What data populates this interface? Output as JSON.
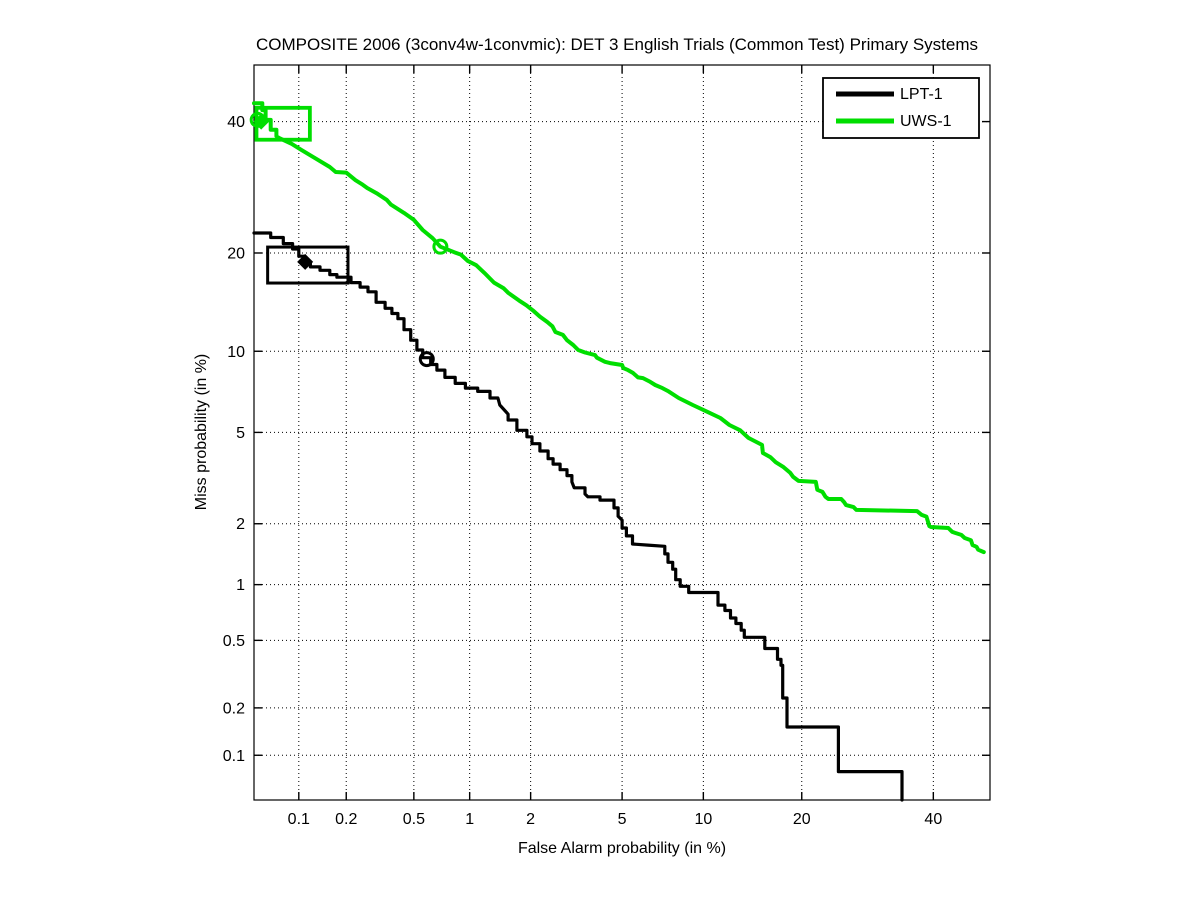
{
  "title": "COMPOSITE 2006 (3conv4w-1convmic): DET 3 English Trials (Common Test) Primary Systems",
  "colors": {
    "lpt1": "#000000",
    "uws1": "#00DE00",
    "grid": "#000000",
    "background": "#ffffff"
  },
  "legend": {
    "position": "top-right",
    "entries": [
      {
        "label": "LPT-1",
        "color": "#000000"
      },
      {
        "label": "UWS-1",
        "color": "#00DE00"
      }
    ]
  },
  "chart_data": {
    "type": "line",
    "subtype": "DET-curve (probit / normal-deviate scale on both axes)",
    "title": "COMPOSITE 2006 (3conv4w-1convmic): DET 3 English Trials (Common Test) Primary Systems",
    "xlabel": "False Alarm probability (in %)",
    "ylabel": "Miss probability (in %)",
    "xlim": [
      0.05,
      50
    ],
    "ylim": [
      0.05,
      50
    ],
    "grid": "dotted",
    "legend_position": "top-right",
    "x_ticks": [
      "0.1",
      "0.2",
      "0.5",
      "1",
      "2",
      "5",
      "10",
      "20",
      "40"
    ],
    "y_ticks": [
      "0.1",
      "0.2",
      "0.5",
      "1",
      "2",
      "5",
      "10",
      "20",
      "40"
    ],
    "series": [
      {
        "name": "LPT-1",
        "color": "#000000",
        "width": 3.2,
        "points": [
          [
            0.05,
            22.6
          ],
          [
            0.065,
            22.6
          ],
          [
            0.065,
            22.0
          ],
          [
            0.079,
            22.0
          ],
          [
            0.079,
            21.2
          ],
          [
            0.091,
            21.2
          ],
          [
            0.091,
            20.5
          ],
          [
            0.1,
            20.5
          ],
          [
            0.1,
            19.6
          ],
          [
            0.109,
            19.6
          ],
          [
            0.109,
            18.8
          ],
          [
            0.119,
            18.8
          ],
          [
            0.119,
            18.3
          ],
          [
            0.137,
            18.3
          ],
          [
            0.137,
            17.9
          ],
          [
            0.158,
            17.9
          ],
          [
            0.158,
            17.4
          ],
          [
            0.175,
            17.4
          ],
          [
            0.175,
            17.1
          ],
          [
            0.214,
            17.1
          ],
          [
            0.214,
            16.5
          ],
          [
            0.243,
            16.5
          ],
          [
            0.243,
            16.0
          ],
          [
            0.271,
            16.0
          ],
          [
            0.271,
            15.5
          ],
          [
            0.303,
            15.5
          ],
          [
            0.303,
            14.4
          ],
          [
            0.342,
            14.4
          ],
          [
            0.342,
            13.8
          ],
          [
            0.375,
            13.8
          ],
          [
            0.375,
            13.3
          ],
          [
            0.406,
            13.3
          ],
          [
            0.406,
            12.8
          ],
          [
            0.44,
            12.8
          ],
          [
            0.44,
            11.8
          ],
          [
            0.48,
            11.8
          ],
          [
            0.48,
            10.9
          ],
          [
            0.52,
            10.9
          ],
          [
            0.52,
            10.1
          ],
          [
            0.56,
            10.1
          ],
          [
            0.56,
            9.5
          ],
          [
            0.62,
            9.5
          ],
          [
            0.62,
            9.0
          ],
          [
            0.67,
            9.0
          ],
          [
            0.67,
            8.6
          ],
          [
            0.74,
            8.6
          ],
          [
            0.74,
            8.1
          ],
          [
            0.84,
            8.1
          ],
          [
            0.84,
            7.7
          ],
          [
            0.95,
            7.7
          ],
          [
            0.95,
            7.4
          ],
          [
            1.1,
            7.4
          ],
          [
            1.1,
            7.2
          ],
          [
            1.27,
            7.2
          ],
          [
            1.27,
            6.8
          ],
          [
            1.39,
            6.8
          ],
          [
            1.42,
            6.4
          ],
          [
            1.56,
            5.9
          ],
          [
            1.56,
            5.6
          ],
          [
            1.72,
            5.6
          ],
          [
            1.72,
            5.1
          ],
          [
            1.92,
            5.1
          ],
          [
            1.92,
            4.8
          ],
          [
            2.03,
            4.8
          ],
          [
            2.03,
            4.5
          ],
          [
            2.21,
            4.5
          ],
          [
            2.21,
            4.2
          ],
          [
            2.41,
            4.2
          ],
          [
            2.41,
            3.9
          ],
          [
            2.54,
            3.9
          ],
          [
            2.54,
            3.7
          ],
          [
            2.73,
            3.7
          ],
          [
            2.73,
            3.5
          ],
          [
            2.93,
            3.5
          ],
          [
            2.93,
            3.3
          ],
          [
            3.08,
            3.3
          ],
          [
            3.08,
            3.1
          ],
          [
            3.15,
            2.92
          ],
          [
            3.51,
            2.92
          ],
          [
            3.51,
            2.74
          ],
          [
            3.61,
            2.66
          ],
          [
            4.06,
            2.66
          ],
          [
            4.06,
            2.57
          ],
          [
            4.64,
            2.57
          ],
          [
            4.64,
            2.37
          ],
          [
            4.82,
            2.37
          ],
          [
            4.82,
            2.17
          ],
          [
            5.0,
            2.08
          ],
          [
            5.0,
            1.91
          ],
          [
            5.2,
            1.91
          ],
          [
            5.2,
            1.75
          ],
          [
            5.5,
            1.75
          ],
          [
            5.5,
            1.6
          ],
          [
            6.3,
            1.58
          ],
          [
            7.3,
            1.56
          ],
          [
            7.3,
            1.43
          ],
          [
            7.5,
            1.43
          ],
          [
            7.5,
            1.3
          ],
          [
            7.8,
            1.3
          ],
          [
            7.8,
            1.2
          ],
          [
            8.0,
            1.2
          ],
          [
            8.0,
            1.06
          ],
          [
            8.3,
            1.06
          ],
          [
            8.3,
            0.98
          ],
          [
            8.9,
            0.98
          ],
          [
            8.9,
            0.91
          ],
          [
            11.2,
            0.91
          ],
          [
            11.2,
            0.78
          ],
          [
            11.8,
            0.78
          ],
          [
            11.8,
            0.73
          ],
          [
            12.3,
            0.73
          ],
          [
            12.3,
            0.665
          ],
          [
            12.8,
            0.665
          ],
          [
            12.8,
            0.62
          ],
          [
            13.3,
            0.62
          ],
          [
            13.3,
            0.57
          ],
          [
            13.6,
            0.57
          ],
          [
            13.6,
            0.52
          ],
          [
            15.7,
            0.52
          ],
          [
            15.7,
            0.45
          ],
          [
            17.1,
            0.45
          ],
          [
            17.1,
            0.39
          ],
          [
            17.5,
            0.39
          ],
          [
            17.5,
            0.36
          ],
          [
            17.7,
            0.36
          ],
          [
            17.7,
            0.23
          ],
          [
            18.2,
            0.23
          ],
          [
            18.2,
            0.152
          ],
          [
            18.6,
            0.152
          ],
          [
            24.9,
            0.152
          ],
          [
            24.9,
            0.078
          ],
          [
            34.7,
            0.078
          ],
          [
            34.7,
            0.05
          ]
        ],
        "markers": [
          {
            "shape": "diamond",
            "fa": 0.11,
            "miss": 18.9
          },
          {
            "shape": "circle",
            "fa": 0.59,
            "miss": 9.4
          }
        ],
        "box": {
          "fa": [
            0.062,
            0.205
          ],
          "miss": [
            16.45,
            20.75
          ]
        }
      },
      {
        "name": "UWS-1",
        "color": "#00DE00",
        "width": 4,
        "points": [
          [
            0.05,
            43.2
          ],
          [
            0.057,
            43.2
          ],
          [
            0.057,
            42.0
          ],
          [
            0.06,
            42.0
          ],
          [
            0.06,
            40.3
          ],
          [
            0.065,
            40.3
          ],
          [
            0.065,
            38.6
          ],
          [
            0.071,
            38.6
          ],
          [
            0.071,
            37.5
          ],
          [
            0.074,
            37.2
          ],
          [
            0.09,
            36.2
          ],
          [
            0.104,
            35.2
          ],
          [
            0.117,
            34.4
          ],
          [
            0.126,
            33.9
          ],
          [
            0.158,
            32.4
          ],
          [
            0.172,
            31.6
          ],
          [
            0.2,
            31.5
          ],
          [
            0.228,
            30.3
          ],
          [
            0.252,
            29.6
          ],
          [
            0.268,
            29.1
          ],
          [
            0.305,
            28.3
          ],
          [
            0.35,
            27.3
          ],
          [
            0.37,
            26.6
          ],
          [
            0.44,
            25.4
          ],
          [
            0.5,
            24.4
          ],
          [
            0.56,
            23.0
          ],
          [
            0.635,
            21.9
          ],
          [
            0.7,
            20.8
          ],
          [
            0.83,
            20.1
          ],
          [
            0.9,
            19.8
          ],
          [
            0.98,
            19.0
          ],
          [
            1.08,
            18.5
          ],
          [
            1.19,
            17.6
          ],
          [
            1.33,
            16.5
          ],
          [
            1.48,
            15.9
          ],
          [
            1.56,
            15.4
          ],
          [
            1.76,
            14.6
          ],
          [
            1.91,
            14.1
          ],
          [
            2.05,
            13.6
          ],
          [
            2.21,
            13.0
          ],
          [
            2.39,
            12.5
          ],
          [
            2.52,
            12.1
          ],
          [
            2.6,
            11.6
          ],
          [
            2.81,
            11.35
          ],
          [
            2.93,
            10.9
          ],
          [
            3.12,
            10.5
          ],
          [
            3.28,
            10.1
          ],
          [
            3.51,
            9.9
          ],
          [
            3.87,
            9.7
          ],
          [
            3.94,
            9.5
          ],
          [
            4.26,
            9.2
          ],
          [
            4.47,
            9.1
          ],
          [
            5.0,
            8.96
          ],
          [
            5.05,
            8.75
          ],
          [
            5.28,
            8.6
          ],
          [
            5.52,
            8.4
          ],
          [
            5.78,
            8.1
          ],
          [
            6.04,
            8.05
          ],
          [
            6.44,
            7.8
          ],
          [
            6.72,
            7.6
          ],
          [
            7.15,
            7.4
          ],
          [
            7.54,
            7.2
          ],
          [
            8.2,
            6.8
          ],
          [
            9.2,
            6.4
          ],
          [
            10.4,
            6.0
          ],
          [
            11.4,
            5.7
          ],
          [
            12.2,
            5.35
          ],
          [
            13.2,
            5.1
          ],
          [
            14.0,
            4.75
          ],
          [
            15.4,
            4.45
          ],
          [
            15.5,
            4.12
          ],
          [
            16.3,
            3.96
          ],
          [
            16.9,
            3.77
          ],
          [
            17.8,
            3.59
          ],
          [
            18.6,
            3.39
          ],
          [
            18.95,
            3.26
          ],
          [
            19.6,
            3.13
          ],
          [
            21.8,
            3.1
          ],
          [
            22.0,
            2.86
          ],
          [
            22.7,
            2.8
          ],
          [
            23.1,
            2.66
          ],
          [
            23.5,
            2.6
          ],
          [
            25.3,
            2.6
          ],
          [
            25.7,
            2.52
          ],
          [
            26.0,
            2.44
          ],
          [
            27.1,
            2.39
          ],
          [
            27.5,
            2.32
          ],
          [
            37.2,
            2.29
          ],
          [
            38.0,
            2.2
          ],
          [
            38.8,
            2.16
          ],
          [
            39.3,
            1.95
          ],
          [
            39.6,
            1.93
          ],
          [
            42.6,
            1.91
          ],
          [
            43.3,
            1.83
          ],
          [
            43.8,
            1.81
          ],
          [
            44.9,
            1.77
          ],
          [
            45.5,
            1.71
          ],
          [
            46.6,
            1.67
          ],
          [
            46.9,
            1.58
          ],
          [
            47.6,
            1.55
          ],
          [
            47.9,
            1.5
          ],
          [
            48.9,
            1.46
          ]
        ],
        "markers": [
          {
            "shape": "circle",
            "fa": 0.053,
            "miss": 40.3
          },
          {
            "shape": "diamond",
            "fa": 0.056,
            "miss": 40.0
          },
          {
            "shape": "circle",
            "fa": 0.7,
            "miss": 20.8
          }
        ],
        "box": {
          "fa": [
            0.052,
            0.118
          ],
          "miss": [
            36.9,
            42.4
          ]
        }
      }
    ]
  }
}
